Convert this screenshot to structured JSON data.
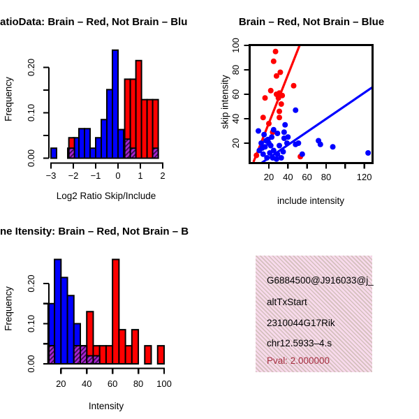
{
  "colors": {
    "red": "#FF0000",
    "blue": "#0000FF",
    "overlap_purple": "#A825D2",
    "overlap_hatch": "#3A0A50",
    "info_box_bg": "#F8DAEC",
    "pval_text": "#A62E40",
    "axis": "#000000"
  },
  "info_box": {
    "line1": "G6884500@J916033@j_",
    "line2": "altTxStart",
    "line3": "2310044G17Rik",
    "line4": "chr12.5933–4.s",
    "line5": "Pval: 2.000000"
  },
  "chart_data": [
    {
      "type": "bar",
      "name": "log2-ratio-histogram",
      "title": "atioData: Brain – Red, Not Brain – Blu",
      "xlabel": "Log2 Ratio Skip/Include",
      "ylabel": "Frequency",
      "xlim": [
        -3.2,
        2.05
      ],
      "ylim": [
        0,
        0.25
      ],
      "bin_width": 0.25,
      "grid": false,
      "x_ticks": [
        {
          "v": -3,
          "label": "−3"
        },
        {
          "v": -2,
          "label": "−2"
        },
        {
          "v": -1,
          "label": "−1"
        },
        {
          "v": 0,
          "label": "0"
        },
        {
          "v": 1,
          "label": "1"
        },
        {
          "v": 2,
          "label": "2"
        }
      ],
      "y_ticks": [
        {
          "v": 0,
          "label": "0.00"
        },
        {
          "v": 0.05
        },
        {
          "v": 0.1,
          "label": "0.10"
        },
        {
          "v": 0.15
        },
        {
          "v": 0.2,
          "label": "0.20"
        }
      ],
      "series": [
        {
          "name": "Not Brain (blue)",
          "color": "#0000FF",
          "bars": [
            [
              -3.0,
              0.022
            ],
            [
              -2.25,
              0.022
            ],
            [
              -2.0,
              0.045
            ],
            [
              -1.75,
              0.065
            ],
            [
              -1.5,
              0.065
            ],
            [
              -1.25,
              0.022
            ],
            [
              -1.0,
              0.045
            ],
            [
              -0.75,
              0.085
            ],
            [
              -0.5,
              0.151
            ],
            [
              -0.25,
              0.238
            ],
            [
              0.0,
              0.063
            ],
            [
              0.25,
              0.042
            ],
            [
              0.5,
              0.022
            ],
            [
              1.5,
              0.022
            ]
          ]
        },
        {
          "name": "Brain (red)",
          "color": "#FF0000",
          "bars": [
            [
              -2.2,
              0.045
            ],
            [
              0.3,
              0.174
            ],
            [
              0.55,
              0.174
            ],
            [
              0.8,
              0.215
            ],
            [
              1.05,
              0.129
            ],
            [
              1.3,
              0.129
            ],
            [
              1.55,
              0.129
            ]
          ]
        },
        {
          "name": "Overlap (purple hatch)",
          "color": "#A825D2",
          "overlap": true,
          "bars": [
            [
              -2.2,
              0.022
            ],
            [
              0.3,
              0.042
            ],
            [
              0.55,
              0.022
            ],
            [
              1.55,
              0.022
            ]
          ]
        }
      ]
    },
    {
      "type": "scatter",
      "name": "skip-vs-include-scatter",
      "title": "Brain – Red, Not Brain – Blue",
      "xlabel": "include intensity",
      "ylabel": "skip intensity",
      "xlim": [
        0,
        128.7
      ],
      "ylim": [
        4,
        100
      ],
      "grid": false,
      "x_ticks": [
        {
          "v": 20,
          "label": "20"
        },
        {
          "v": 40,
          "label": "40"
        },
        {
          "v": 60,
          "label": "60"
        },
        {
          "v": 80,
          "label": "80"
        },
        {
          "v": 100
        },
        {
          "v": 120,
          "label": "120"
        }
      ],
      "y_ticks": [
        {
          "v": 20,
          "label": "20"
        },
        {
          "v": 40,
          "label": "40"
        },
        {
          "v": 60,
          "label": "60"
        },
        {
          "v": 80,
          "label": "80"
        },
        {
          "v": 100,
          "label": "100"
        }
      ],
      "series": [
        {
          "name": "Brain (red)",
          "color": "#FF0000",
          "fit_line": {
            "x1": 3.9,
            "y1": 4.6,
            "x2": 52.2,
            "y2": 100
          },
          "points": [
            [
              27,
              95
            ],
            [
              25,
              87
            ],
            [
              32,
              78
            ],
            [
              28,
              75
            ],
            [
              46,
              67
            ],
            [
              22,
              63
            ],
            [
              16,
              57
            ],
            [
              28,
              60
            ],
            [
              31,
              61
            ],
            [
              34,
              59
            ],
            [
              30,
              57
            ],
            [
              33,
              52
            ],
            [
              31,
              46
            ],
            [
              31,
              41
            ],
            [
              14,
              41
            ],
            [
              20,
              36
            ],
            [
              24,
              29
            ],
            [
              53,
              9
            ],
            [
              7,
              10
            ]
          ]
        },
        {
          "name": "Not Brain (blue)",
          "color": "#0000FF",
          "fit_line": {
            "x1": 12.7,
            "y1": 4.0,
            "x2": 128.4,
            "y2": 65.7
          },
          "points": [
            [
              48,
              47
            ],
            [
              37,
              35
            ],
            [
              9,
              30
            ],
            [
              25,
              31
            ],
            [
              29,
              28
            ],
            [
              36,
              29
            ],
            [
              40,
              25
            ],
            [
              51,
              20
            ],
            [
              72,
              22
            ],
            [
              74,
              19
            ],
            [
              87,
              17
            ],
            [
              124,
              12
            ],
            [
              55,
              11
            ],
            [
              48,
              19
            ],
            [
              15,
              27
            ],
            [
              19,
              23
            ],
            [
              12,
              20
            ],
            [
              16,
              17
            ],
            [
              10,
              14
            ],
            [
              14,
              11
            ],
            [
              22,
              18
            ],
            [
              25,
              14
            ],
            [
              29,
              11
            ],
            [
              31,
              18
            ],
            [
              35,
              13
            ],
            [
              36,
              24
            ],
            [
              39,
              20
            ],
            [
              21,
              12
            ],
            [
              18,
              8
            ],
            [
              24,
              8
            ],
            [
              28,
              7
            ],
            [
              33,
              8
            ],
            [
              20,
              20
            ],
            [
              17,
              22
            ],
            [
              13,
              16
            ],
            [
              23,
              25
            ]
          ]
        }
      ]
    },
    {
      "type": "bar",
      "name": "gene-intensity-histogram",
      "title": "ne Itensity: Brain – Red, Not Brain – B",
      "xlabel": "Intensity",
      "ylabel": "Frequency",
      "xlim": [
        8,
        101
      ],
      "ylim": [
        0,
        0.26
      ],
      "bin_width": 5,
      "grid": false,
      "x_ticks": [
        {
          "v": 20,
          "label": "20"
        },
        {
          "v": 40,
          "label": "40"
        },
        {
          "v": 60,
          "label": "60"
        },
        {
          "v": 80,
          "label": "80"
        },
        {
          "v": 100,
          "label": "100"
        }
      ],
      "y_ticks": [
        {
          "v": 0,
          "label": "0.00"
        },
        {
          "v": 0.05
        },
        {
          "v": 0.1,
          "label": "0.10"
        },
        {
          "v": 0.15
        },
        {
          "v": 0.2,
          "label": "0.20"
        }
      ],
      "series": [
        {
          "name": "Not Brain (blue)",
          "color": "#0000FF",
          "bars": [
            [
              10,
              0.15
            ],
            [
              15,
              0.26
            ],
            [
              20,
              0.215
            ],
            [
              25,
              0.17
            ],
            [
              30,
              0.1
            ],
            [
              35,
              0.045
            ],
            [
              40,
              0.02
            ],
            [
              45,
              0.02
            ]
          ]
        },
        {
          "name": "Brain (red)",
          "color": "#FF0000",
          "bars": [
            [
              10,
              0.045
            ],
            [
              30,
              0.045
            ],
            [
              35,
              0.045
            ],
            [
              40,
              0.13
            ],
            [
              45,
              0.045
            ],
            [
              50,
              0.045
            ],
            [
              55,
              0.045
            ],
            [
              60,
              0.26
            ],
            [
              65,
              0.085
            ],
            [
              70,
              0.045
            ],
            [
              75,
              0.085
            ],
            [
              85,
              0.045
            ],
            [
              95,
              0.045
            ]
          ]
        },
        {
          "name": "Overlap (purple hatch)",
          "color": "#A825D2",
          "overlap": true,
          "bars": [
            [
              10,
              0.045
            ],
            [
              30,
              0.045
            ],
            [
              35,
              0.045
            ],
            [
              40,
              0.02
            ],
            [
              45,
              0.02
            ]
          ]
        }
      ]
    }
  ]
}
